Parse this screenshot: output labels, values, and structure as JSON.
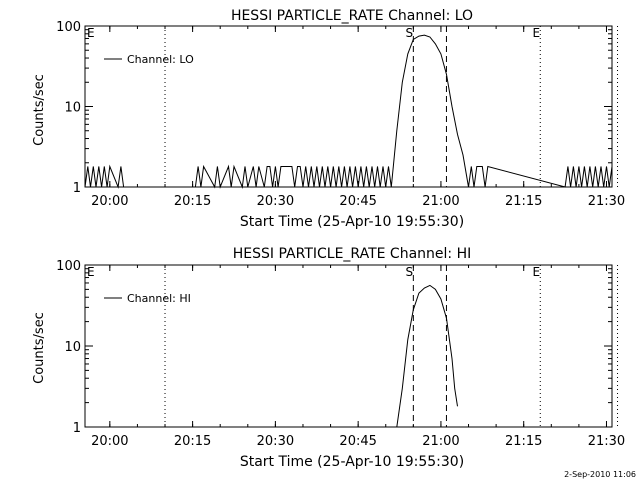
{
  "footer_date": "2-Sep-2010 11:06",
  "chart_data": [
    {
      "type": "line",
      "title": "HESSI PARTICLE_RATE Channel: LO",
      "xlabel": "Start Time (25-Apr-10 19:55:30)",
      "ylabel": "Counts/sec",
      "yscale": "log",
      "ylim": [
        1,
        100
      ],
      "xlim_minutes_since_start": [
        0,
        95.5
      ],
      "x_tick_labels": [
        "20:00",
        "20:15",
        "20:30",
        "20:45",
        "21:00",
        "21:15",
        "21:30"
      ],
      "y_tick_labels": [
        "1",
        "10",
        "100"
      ],
      "legend": {
        "position": "top-left",
        "entries": [
          "Channel: LO"
        ]
      },
      "markers": [
        {
          "label": "",
          "time": "20:10",
          "style": "dotted"
        },
        {
          "label": "S",
          "time": "20:55",
          "style": "dashed"
        },
        {
          "label": "",
          "time": "21:01",
          "style": "dashed"
        },
        {
          "label": "E",
          "time": "21:18",
          "style": "dotted"
        },
        {
          "label": "",
          "time": "21:32",
          "style": "dotted"
        }
      ],
      "corner_label_left": "E",
      "series": [
        {
          "name": "Channel: LO",
          "x": [
            "19:55:30",
            "19:56:00",
            "19:56:30",
            "19:57:00",
            "19:57:30",
            "19:58:00",
            "19:58:30",
            "19:59:00",
            "19:59:30",
            "20:00:00",
            "20:01:30",
            "20:02:00",
            "20:02:30",
            "20:08:30",
            "20:09:00",
            "20:09:30",
            "20:10:00",
            "20:15:30",
            "20:16:00",
            "20:16:30",
            "20:17:00",
            "20:19:00",
            "20:19:30",
            "20:20:00",
            "20:21:30",
            "20:22:00",
            "20:22:30",
            "20:24:00",
            "20:24:30",
            "20:25:00",
            "20:26:00",
            "20:26:30",
            "20:27:00",
            "20:28:00",
            "20:28:30",
            "20:29:00",
            "20:29:30",
            "20:30:00",
            "20:30:30",
            "20:31:00",
            "20:31:30",
            "20:32:00",
            "20:32:30",
            "20:33:00",
            "20:33:30",
            "20:34:00",
            "20:34:30",
            "20:35:00",
            "20:35:30",
            "20:36:00",
            "20:36:30",
            "20:37:00",
            "20:37:30",
            "20:38:00",
            "20:38:30",
            "20:39:00",
            "20:39:30",
            "20:40:00",
            "20:40:30",
            "20:41:00",
            "20:41:30",
            "20:42:00",
            "20:42:30",
            "20:43:00",
            "20:43:30",
            "20:44:00",
            "20:44:30",
            "20:45:00",
            "20:45:30",
            "20:46:00",
            "20:46:30",
            "20:47:00",
            "20:47:30",
            "20:48:00",
            "20:48:30",
            "20:49:00",
            "20:49:30",
            "20:50:00",
            "20:50:30",
            "20:51:00",
            "20:51:30",
            "20:52:00",
            "20:53:00",
            "20:54:00",
            "20:55:00",
            "20:56:00",
            "20:57:00",
            "20:58:00",
            "20:59:00",
            "21:00:00",
            "21:01:00",
            "21:02:00",
            "21:03:00",
            "21:04:00",
            "21:05:00",
            "21:05:30",
            "21:06:00",
            "21:06:30",
            "21:07:00",
            "21:07:30",
            "21:08:00",
            "21:08:30",
            "21:22:30",
            "21:23:00",
            "21:23:30",
            "21:24:00",
            "21:24:30",
            "21:25:00",
            "21:25:30",
            "21:26:00",
            "21:26:30",
            "21:27:00",
            "21:27:30",
            "21:28:00",
            "21:28:30",
            "21:29:00",
            "21:29:30",
            "21:30:00",
            "21:30:30",
            "21:31:00"
          ],
          "y": [
            1,
            1.8,
            1,
            1.8,
            1,
            1.8,
            1,
            1.8,
            1,
            1.8,
            1,
            1.8,
            1,
            1,
            1,
            1,
            1,
            1,
            1.8,
            1,
            1.8,
            1,
            1.8,
            1,
            1.8,
            1,
            1.8,
            1,
            1.8,
            1,
            1.8,
            1,
            1.8,
            1,
            1.8,
            1.8,
            1,
            1.8,
            1,
            1.8,
            1.8,
            1.8,
            1.8,
            1.8,
            1,
            1.8,
            1.8,
            1,
            1.8,
            1,
            1.8,
            1,
            1.8,
            1,
            1.8,
            1,
            1.8,
            1,
            1.8,
            1,
            1.8,
            1,
            1.8,
            1,
            1.8,
            1,
            1.8,
            1,
            1.8,
            1,
            1.8,
            1,
            1.8,
            1,
            1.8,
            1,
            1.8,
            1,
            1.8,
            1,
            2.2,
            5,
            20,
            45,
            68,
            75,
            77,
            73,
            60,
            45,
            25,
            10,
            4.5,
            2.5,
            1,
            1.8,
            1,
            1.8,
            1.8,
            1.8,
            1,
            1.8,
            1,
            1.8,
            1,
            1.8,
            1,
            1.8,
            1,
            1.8,
            1,
            1.8,
            1,
            1.8,
            1,
            1.8,
            1,
            1.8,
            1,
            1.8
          ]
        }
      ]
    },
    {
      "type": "line",
      "title": "HESSI PARTICLE_RATE Channel: HI",
      "xlabel": "Start Time (25-Apr-10 19:55:30)",
      "ylabel": "Counts/sec",
      "yscale": "log",
      "ylim": [
        1,
        100
      ],
      "xlim_minutes_since_start": [
        0,
        95.5
      ],
      "x_tick_labels": [
        "20:00",
        "20:15",
        "20:30",
        "20:45",
        "21:00",
        "21:15",
        "21:30"
      ],
      "y_tick_labels": [
        "1",
        "10",
        "100"
      ],
      "legend": {
        "position": "top-left",
        "entries": [
          "Channel: HI"
        ]
      },
      "markers": [
        {
          "label": "",
          "time": "20:10",
          "style": "dotted"
        },
        {
          "label": "S",
          "time": "20:55",
          "style": "dashed"
        },
        {
          "label": "",
          "time": "21:01",
          "style": "dashed"
        },
        {
          "label": "E",
          "time": "21:18",
          "style": "dotted"
        },
        {
          "label": "",
          "time": "21:32",
          "style": "dotted"
        }
      ],
      "corner_label_left": "E",
      "series": [
        {
          "name": "Channel: HI",
          "x": [
            "20:52:00",
            "20:53:00",
            "20:54:00",
            "20:55:00",
            "20:56:00",
            "20:57:00",
            "20:58:00",
            "20:59:00",
            "21:00:00",
            "21:01:00",
            "21:02:00",
            "21:02:30",
            "21:03:00"
          ],
          "y": [
            1,
            3,
            12,
            28,
            45,
            52,
            56,
            50,
            38,
            22,
            7,
            3,
            1.8
          ]
        }
      ]
    }
  ]
}
